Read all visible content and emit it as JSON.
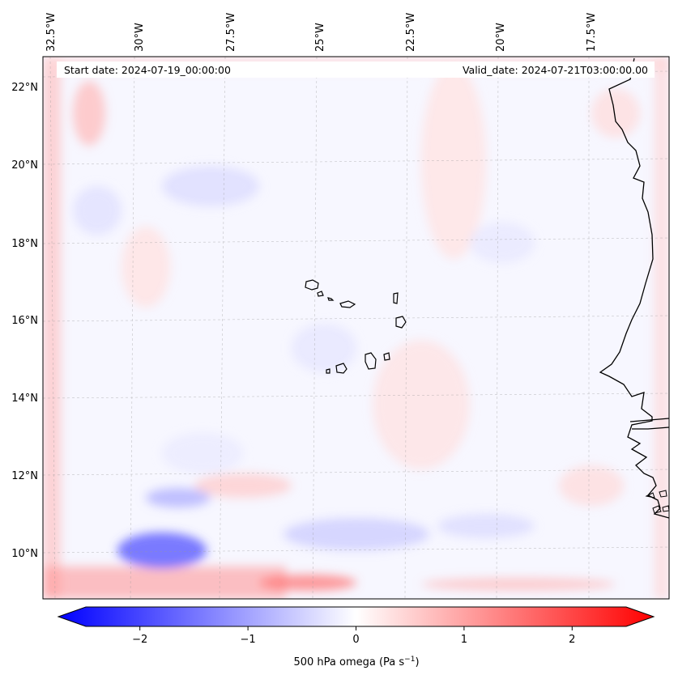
{
  "header": {
    "start_date": "Start date: 2024-07-19_00:00:00",
    "valid_date": "Valid_date: 2024-07-21T03:00:00.00"
  },
  "map": {
    "field": "500 hPa omega",
    "lon_labels": [
      "32.5°W",
      "30°W",
      "27.5°W",
      "25°W",
      "22.5°W",
      "20°W",
      "17.5°W"
    ],
    "lat_labels": [
      "22°N",
      "20°N",
      "18°N",
      "16°N",
      "14°N",
      "12°N",
      "10°N"
    ],
    "colors": {
      "negative": "#0000ff",
      "neutral": "#ffffff",
      "positive": "#ff0000",
      "coast": "#000000"
    }
  },
  "colorbar": {
    "ticks": [
      "−2",
      "−1",
      "0",
      "1",
      "2"
    ],
    "tick_values": [
      -2,
      -1,
      0,
      1,
      2
    ],
    "vmin": -2.5,
    "vmax": 2.5,
    "label_main": "500 hPa omega (Pa s",
    "label_exp": "−1",
    "label_close": ")"
  }
}
